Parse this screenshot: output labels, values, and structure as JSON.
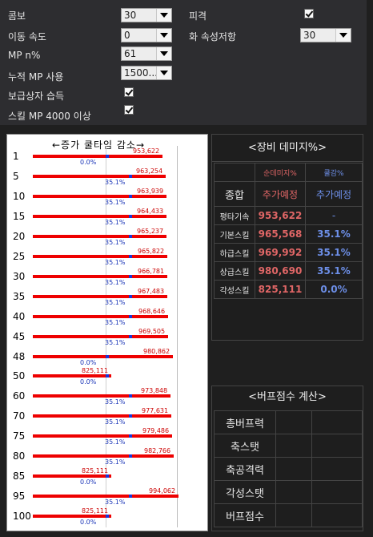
{
  "settings": {
    "combo_label": "콤보",
    "combo_value": "30",
    "speed_label": "이동 속도",
    "speed_value": "0",
    "mp_label": "MP n%",
    "mp_value": "61",
    "accum_label": "누적 MP 사용",
    "accum_value": "1500...",
    "acq_label": "보급상자 습득",
    "skill_mp_label": "스킬 MP 4000 이상",
    "hit_label": "피격",
    "fire_label": "화 속성저항",
    "fire_value": "30"
  },
  "chart_title": "←증가 쿨타임 감소→",
  "chart_data": {
    "type": "bar",
    "categories": [
      "1",
      "5",
      "10",
      "15",
      "20",
      "25",
      "30",
      "35",
      "40",
      "45",
      "48",
      "50",
      "60",
      "70",
      "75",
      "80",
      "85",
      "95",
      "100"
    ],
    "series": [
      {
        "name": "데미지",
        "values": [
          953622,
          963254,
          963939,
          964433,
          965237,
          965822,
          966781,
          967483,
          968646,
          969505,
          980862,
          825111,
          973848,
          977631,
          979486,
          982766,
          825111,
          994062,
          825111
        ]
      },
      {
        "name": "쿨감%",
        "values": [
          0.0,
          35.1,
          35.1,
          35.1,
          35.1,
          35.1,
          35.1,
          35.1,
          35.1,
          35.1,
          0.0,
          0.0,
          35.1,
          35.1,
          35.1,
          35.1,
          0.0,
          35.1,
          0.0
        ]
      }
    ],
    "damage_labels": [
      "953,622",
      "963,254",
      "963,939",
      "964,433",
      "965,237",
      "965,822",
      "966,781",
      "967,483",
      "968,646",
      "969,505",
      "980,862",
      "825,111",
      "973,848",
      "977,631",
      "979,486",
      "982,766",
      "825,111",
      "994,062",
      "825,111"
    ],
    "pct_labels": [
      "0.0%",
      "35.1%",
      "35.1%",
      "35.1%",
      "35.1%",
      "35.1%",
      "35.1%",
      "35.1%",
      "35.1%",
      "35.1%",
      "0.0%",
      "0.0%",
      "35.1%",
      "35.1%",
      "35.1%",
      "35.1%",
      "0.0%",
      "35.1%",
      "0.0%"
    ]
  },
  "dmg_table": {
    "title": "<장비 데미지%>",
    "head": [
      "",
      "순데미지%",
      "쿨감%"
    ],
    "sub": [
      "종합",
      "추가예정",
      "추가예정"
    ],
    "rows": [
      [
        "평타기속",
        "953,622",
        "-"
      ],
      [
        "기본스킬",
        "965,568",
        "35.1%"
      ],
      [
        "하급스킬",
        "969,992",
        "35.1%"
      ],
      [
        "상급스킬",
        "980,690",
        "35.1%"
      ],
      [
        "각성스킬",
        "825,111",
        "0.0%"
      ]
    ]
  },
  "buff_table": {
    "title": "<버프점수 계산>",
    "rows": [
      "총버프력",
      "축스탯",
      "축공격력",
      "각성스탯",
      "버프점수"
    ]
  },
  "colors": {
    "bar": "#ee0000",
    "marker": "#1a35d8",
    "dmg_label": "#cc0000",
    "pct_label": "#1a35b8",
    "head_red": "#e06666",
    "head_blue": "#6d8fe8"
  }
}
